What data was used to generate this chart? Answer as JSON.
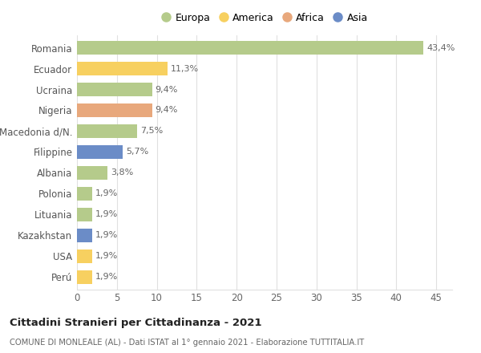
{
  "countries": [
    "Romania",
    "Ecuador",
    "Ucraina",
    "Nigeria",
    "Macedonia d/N.",
    "Filippine",
    "Albania",
    "Polonia",
    "Lituania",
    "Kazakhstan",
    "USA",
    "Perú"
  ],
  "values": [
    43.4,
    11.3,
    9.4,
    9.4,
    7.5,
    5.7,
    3.8,
    1.9,
    1.9,
    1.9,
    1.9,
    1.9
  ],
  "labels": [
    "43,4%",
    "11,3%",
    "9,4%",
    "9,4%",
    "7,5%",
    "5,7%",
    "3,8%",
    "1,9%",
    "1,9%",
    "1,9%",
    "1,9%",
    "1,9%"
  ],
  "colors": [
    "#b5cb8b",
    "#f7d060",
    "#b5cb8b",
    "#e8a87c",
    "#b5cb8b",
    "#6b8cc7",
    "#b5cb8b",
    "#b5cb8b",
    "#b5cb8b",
    "#6b8cc7",
    "#f7d060",
    "#f7d060"
  ],
  "legend": [
    {
      "label": "Europa",
      "color": "#b5cb8b"
    },
    {
      "label": "America",
      "color": "#f7d060"
    },
    {
      "label": "Africa",
      "color": "#e8a87c"
    },
    {
      "label": "Asia",
      "color": "#6b8cc7"
    }
  ],
  "title": "Cittadini Stranieri per Cittadinanza - 2021",
  "subtitle": "COMUNE DI MONLEALE (AL) - Dati ISTAT al 1° gennaio 2021 - Elaborazione TUTTITALIA.IT",
  "xlim": [
    0,
    47
  ],
  "xticks": [
    0,
    5,
    10,
    15,
    20,
    25,
    30,
    35,
    40,
    45
  ],
  "background_color": "#ffffff",
  "grid_color": "#e0e0e0",
  "bar_height": 0.65,
  "figsize": [
    6.0,
    4.4
  ],
  "dpi": 100
}
